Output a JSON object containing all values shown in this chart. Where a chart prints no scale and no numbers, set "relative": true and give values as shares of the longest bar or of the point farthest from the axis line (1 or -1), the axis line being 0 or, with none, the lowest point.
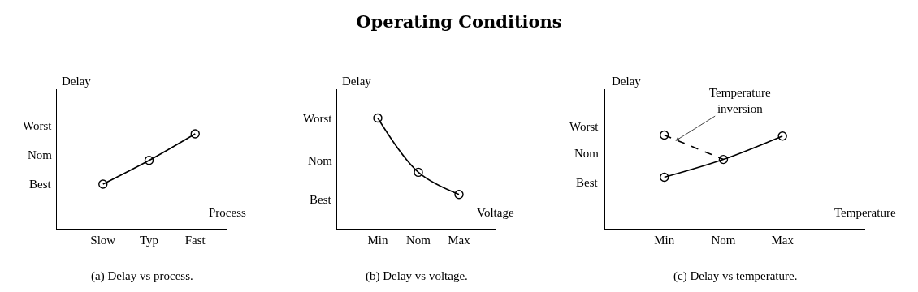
{
  "chart_data": [
    {
      "type": "line",
      "xlabel": "Process",
      "ylabel": "Delay",
      "annotations": [
        "Worst",
        "Nom",
        "Best",
        "(a) Delay vs process."
      ],
      "relative": true,
      "categories": [
        "Slow",
        "Typ",
        "Fast"
      ],
      "series": [
        {
          "color": "#000000",
          "line_style": "solid",
          "values": [
            0.47,
            0.72,
            1
          ]
        },
        {
          "type": "scatter",
          "color": "#000000",
          "marker": "circle",
          "values": [
            0.47,
            0.72,
            1
          ]
        }
      ]
    },
    {
      "type": "line",
      "title": "Operating Conditions",
      "xlabel": "Voltage",
      "ylabel": "Delay",
      "annotations": [
        "Worst",
        "Nom",
        "Best",
        "(b) Delay vs voltage."
      ],
      "relative": true,
      "categories": [
        "Min",
        "Nom",
        "Max"
      ],
      "series": [
        {
          "color": "#000000",
          "line_style": "solid",
          "values": [
            1,
            0.51,
            0.31
          ]
        },
        {
          "type": "scatter",
          "color": "#000000",
          "marker": "circle",
          "values": [
            1,
            0.51,
            0.31
          ]
        }
      ]
    },
    {
      "type": "line",
      "xlabel": "Temperature",
      "ylabel": "Delay",
      "annotations": [
        "Worst",
        "Nom",
        "Best",
        "(c) Delay vs temperature.",
        "Temperature\ninversion"
      ],
      "relative": true,
      "categories": [
        "Min",
        "Nom",
        "Max"
      ],
      "series": [
        {
          "color": "#000000",
          "line_style": "solid",
          "values": [
            0.55,
            0.74,
            0.99
          ]
        },
        {
          "color": "#000000",
          "line_style": "dashed",
          "values": [
            1,
            0.74,
            null
          ]
        },
        {
          "type": "scatter",
          "color": "#000000",
          "marker": "circle",
          "values": [
            0.55,
            0.74,
            0.99
          ]
        },
        {
          "type": "scatter",
          "color": "#000000",
          "marker": "circle",
          "values": [
            1,
            null,
            null
          ]
        }
      ]
    }
  ]
}
